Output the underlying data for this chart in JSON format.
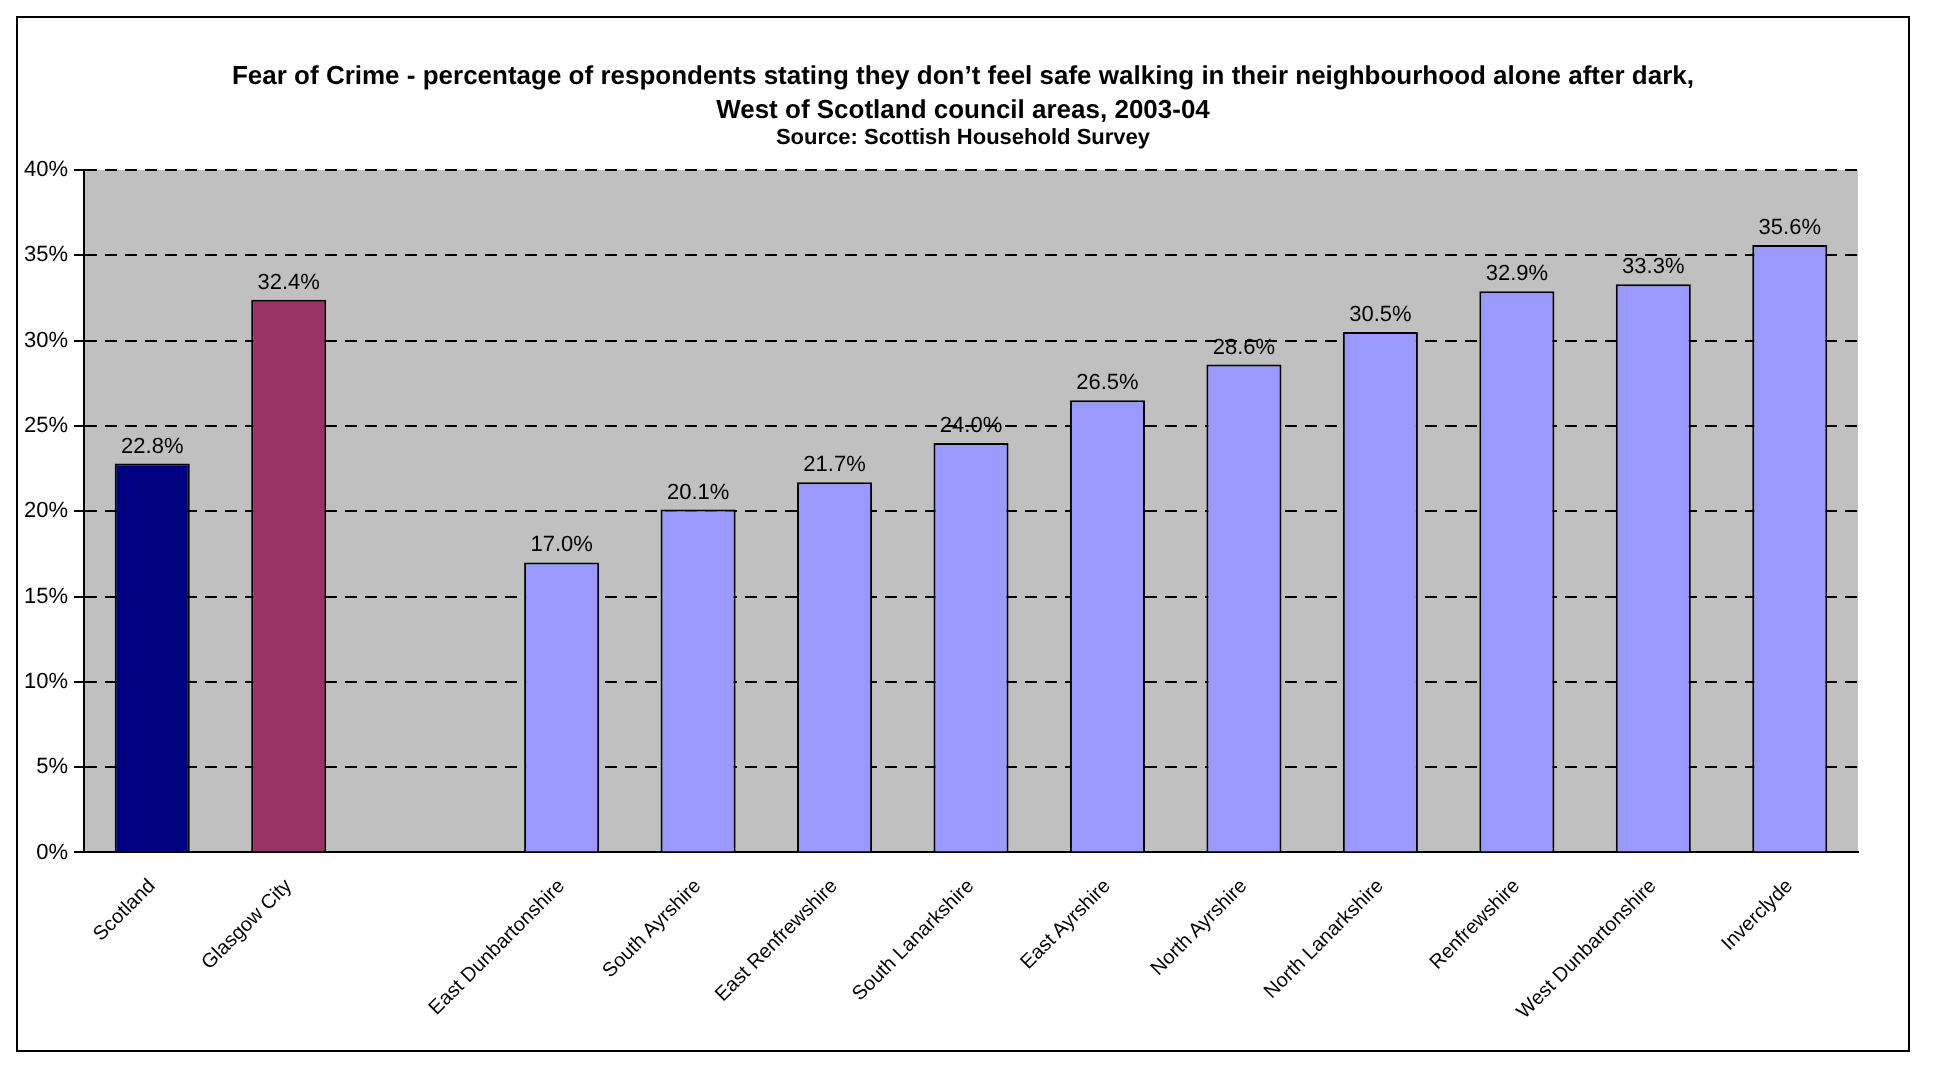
{
  "chart_data": {
    "type": "bar",
    "title": "Fear of Crime - percentage of respondents stating they don’t feel safe walking in their neighbourhood alone after dark, West of Scotland council areas, 2003-04",
    "subtitle": "Source: Scottish Household Survey",
    "categories": [
      "Scotland",
      "Glasgow City",
      null,
      "East Dunbartonshire",
      "South Ayrshire",
      "East Renfrewshire",
      "South Lanarkshire",
      "East Ayrshire",
      "North Ayrshire",
      "North Lanarkshire",
      "Renfrewshire",
      "West Dunbartonshire",
      "Inverclyde"
    ],
    "values": [
      22.8,
      32.4,
      null,
      17.0,
      20.1,
      21.7,
      24.0,
      26.5,
      28.6,
      30.5,
      32.9,
      33.3,
      35.6
    ],
    "colors": [
      "#000080",
      "#993366",
      "#9999ff",
      "#9999ff",
      "#9999ff",
      "#9999ff",
      "#9999ff",
      "#9999ff",
      "#9999ff",
      "#9999ff",
      "#9999ff",
      "#9999ff",
      "#9999ff"
    ],
    "value_labels": [
      "22.8%",
      "32.4%",
      null,
      "17.0%",
      "20.1%",
      "21.7%",
      "24.0%",
      "26.5%",
      "28.6%",
      "30.5%",
      "32.9%",
      "33.3%",
      "35.6%"
    ],
    "ylim": [
      0,
      40
    ],
    "yticks": [
      {
        "value": 0,
        "label": "0%"
      },
      {
        "value": 5,
        "label": "5%"
      },
      {
        "value": 10,
        "label": "10%"
      },
      {
        "value": 15,
        "label": "15%"
      },
      {
        "value": 20,
        "label": "20%"
      },
      {
        "value": 25,
        "label": "25%"
      },
      {
        "value": 30,
        "label": "30%"
      },
      {
        "value": 35,
        "label": "35%"
      },
      {
        "value": 40,
        "label": "40%"
      }
    ],
    "grid": "y",
    "legend": false
  }
}
